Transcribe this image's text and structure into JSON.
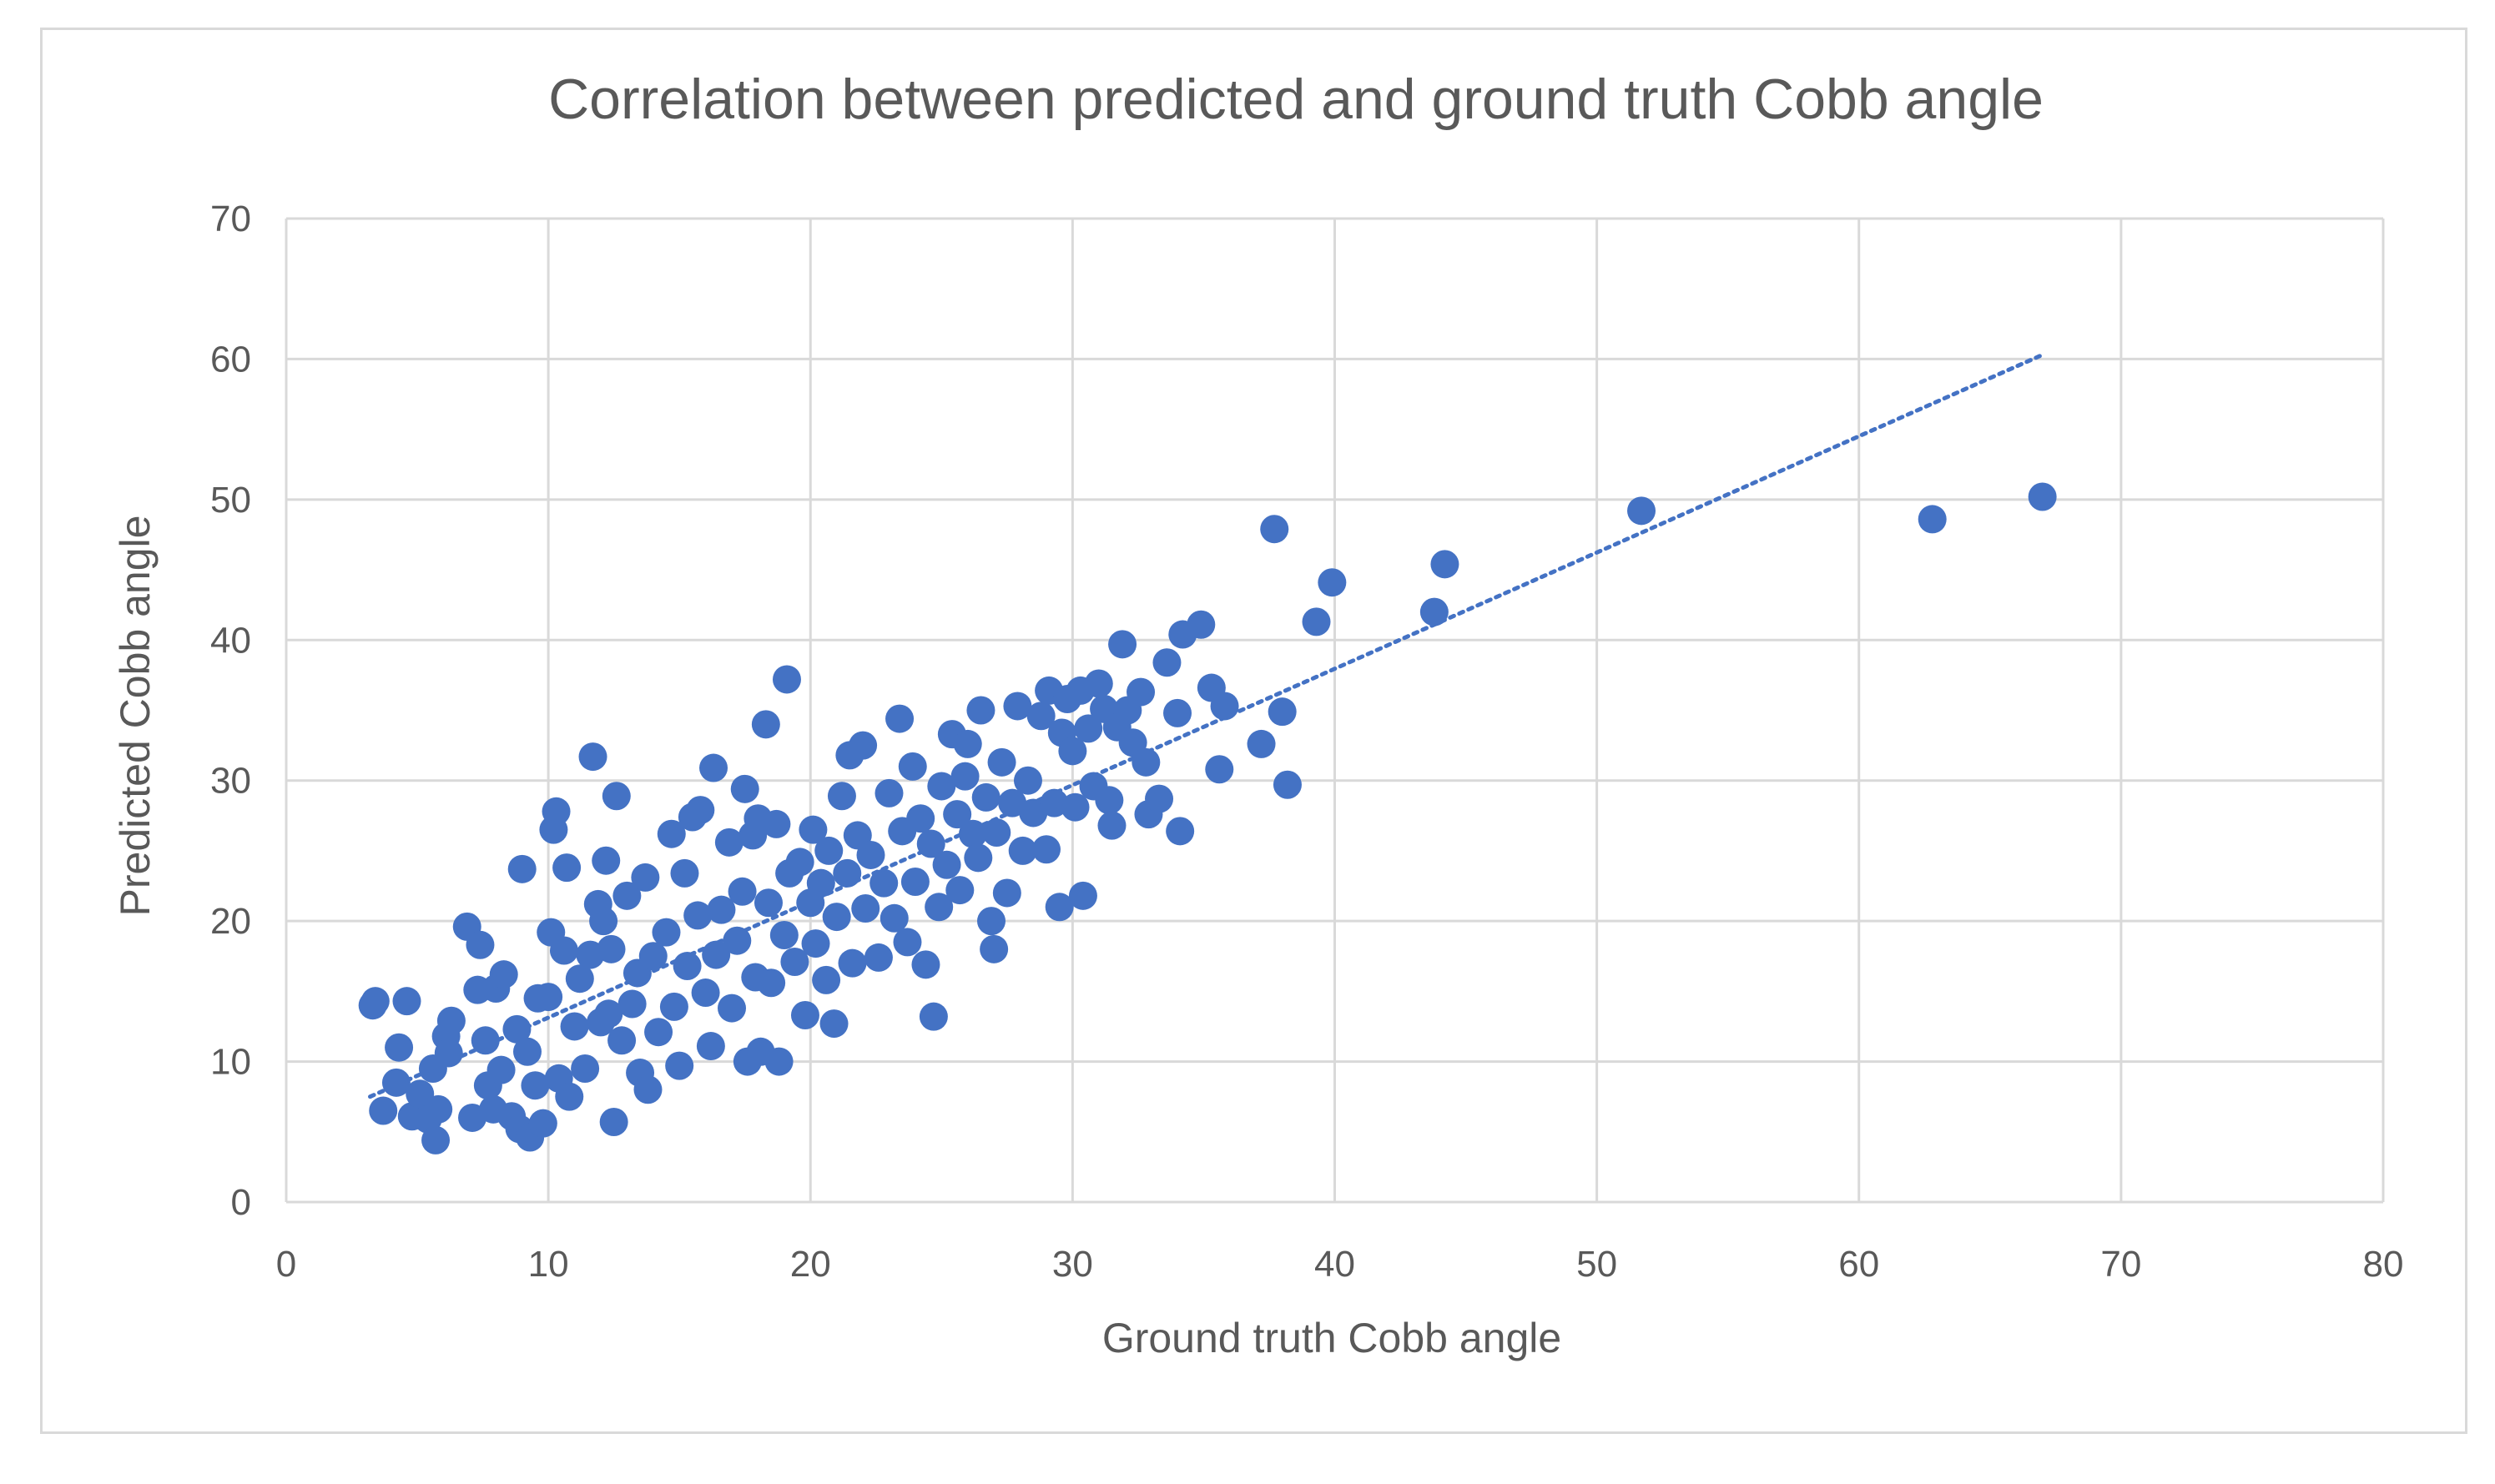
{
  "chart_data": {
    "type": "scatter",
    "title": "Correlation between predicted and ground truth Cobb angle",
    "xlabel": "Ground truth Cobb angle",
    "ylabel": "Predicted Cobb angle",
    "xlim": [
      0,
      80
    ],
    "ylim": [
      0,
      70
    ],
    "xticks": [
      "0",
      "10",
      "20",
      "30",
      "40",
      "50",
      "60",
      "70",
      "80"
    ],
    "yticks": [
      "0",
      "10",
      "20",
      "30",
      "40",
      "50",
      "60",
      "70"
    ],
    "grid": true,
    "legend": "none",
    "marker_color": "#4472c4",
    "trendline": {
      "style": "dotted",
      "x": [
        3.2,
        67
      ],
      "y": [
        7.5,
        60.3
      ]
    },
    "points": [
      [
        3.3,
        14.0
      ],
      [
        3.4,
        14.3
      ],
      [
        3.7,
        6.5
      ],
      [
        4.2,
        8.5
      ],
      [
        4.3,
        11.0
      ],
      [
        4.6,
        14.3
      ],
      [
        4.8,
        6.1
      ],
      [
        5.1,
        7.7
      ],
      [
        5.4,
        5.9
      ],
      [
        5.6,
        9.5
      ],
      [
        5.7,
        4.4
      ],
      [
        5.8,
        6.6
      ],
      [
        6.1,
        11.8
      ],
      [
        6.2,
        10.6
      ],
      [
        6.3,
        12.9
      ],
      [
        6.9,
        19.6
      ],
      [
        7.1,
        6.0
      ],
      [
        7.3,
        15.1
      ],
      [
        7.4,
        18.3
      ],
      [
        7.6,
        11.5
      ],
      [
        7.7,
        8.3
      ],
      [
        7.9,
        6.6
      ],
      [
        8.0,
        15.2
      ],
      [
        8.2,
        9.4
      ],
      [
        8.3,
        16.2
      ],
      [
        8.6,
        6.1
      ],
      [
        8.8,
        12.3
      ],
      [
        8.9,
        5.2
      ],
      [
        9.0,
        23.7
      ],
      [
        9.2,
        10.7
      ],
      [
        9.3,
        4.6
      ],
      [
        9.5,
        8.3
      ],
      [
        9.6,
        14.5
      ],
      [
        9.8,
        5.6
      ],
      [
        10.0,
        14.6
      ],
      [
        10.1,
        19.2
      ],
      [
        10.2,
        26.5
      ],
      [
        10.3,
        27.8
      ],
      [
        10.4,
        8.8
      ],
      [
        10.6,
        17.9
      ],
      [
        10.7,
        23.8
      ],
      [
        10.8,
        7.5
      ],
      [
        11.0,
        12.5
      ],
      [
        11.2,
        15.9
      ],
      [
        11.4,
        9.5
      ],
      [
        11.6,
        17.6
      ],
      [
        11.7,
        31.7
      ],
      [
        11.9,
        21.2
      ],
      [
        12.0,
        12.8
      ],
      [
        12.1,
        20.0
      ],
      [
        12.2,
        24.3
      ],
      [
        12.3,
        13.4
      ],
      [
        12.4,
        18.0
      ],
      [
        12.5,
        5.7
      ],
      [
        12.6,
        28.9
      ],
      [
        12.8,
        11.5
      ],
      [
        13.0,
        21.8
      ],
      [
        13.2,
        14.1
      ],
      [
        13.4,
        16.3
      ],
      [
        13.5,
        9.2
      ],
      [
        13.7,
        23.1
      ],
      [
        13.8,
        8.0
      ],
      [
        14.0,
        17.5
      ],
      [
        14.2,
        12.1
      ],
      [
        14.5,
        19.2
      ],
      [
        14.7,
        26.2
      ],
      [
        14.8,
        13.9
      ],
      [
        15.0,
        9.7
      ],
      [
        15.2,
        23.4
      ],
      [
        15.3,
        16.8
      ],
      [
        15.5,
        27.4
      ],
      [
        15.7,
        20.4
      ],
      [
        15.8,
        27.9
      ],
      [
        16.0,
        14.9
      ],
      [
        16.2,
        11.1
      ],
      [
        16.3,
        30.9
      ],
      [
        16.4,
        17.6
      ],
      [
        16.6,
        20.8
      ],
      [
        16.9,
        25.6
      ],
      [
        17.0,
        13.8
      ],
      [
        17.2,
        18.6
      ],
      [
        17.4,
        22.1
      ],
      [
        17.5,
        29.4
      ],
      [
        17.6,
        10.0
      ],
      [
        17.8,
        26.1
      ],
      [
        17.9,
        16.0
      ],
      [
        18.0,
        27.3
      ],
      [
        18.1,
        10.7
      ],
      [
        18.3,
        34.0
      ],
      [
        18.4,
        21.3
      ],
      [
        18.5,
        15.6
      ],
      [
        18.7,
        26.9
      ],
      [
        18.8,
        10.0
      ],
      [
        19.0,
        19.0
      ],
      [
        19.1,
        37.2
      ],
      [
        19.2,
        23.4
      ],
      [
        19.4,
        17.1
      ],
      [
        19.6,
        24.2
      ],
      [
        19.8,
        13.3
      ],
      [
        20.0,
        21.3
      ],
      [
        20.1,
        26.5
      ],
      [
        20.2,
        18.4
      ],
      [
        20.4,
        22.7
      ],
      [
        20.6,
        15.8
      ],
      [
        20.7,
        25.0
      ],
      [
        20.9,
        12.7
      ],
      [
        21.0,
        20.3
      ],
      [
        21.2,
        28.9
      ],
      [
        21.4,
        23.4
      ],
      [
        21.5,
        31.8
      ],
      [
        21.6,
        17.0
      ],
      [
        21.8,
        26.1
      ],
      [
        22.0,
        32.5
      ],
      [
        22.1,
        20.9
      ],
      [
        22.3,
        24.7
      ],
      [
        22.6,
        17.4
      ],
      [
        22.8,
        22.7
      ],
      [
        23.0,
        29.1
      ],
      [
        23.2,
        20.2
      ],
      [
        23.4,
        34.4
      ],
      [
        23.5,
        26.4
      ],
      [
        23.7,
        18.5
      ],
      [
        23.9,
        31.0
      ],
      [
        24.0,
        22.8
      ],
      [
        24.2,
        27.3
      ],
      [
        24.4,
        16.9
      ],
      [
        24.6,
        25.5
      ],
      [
        24.7,
        13.2
      ],
      [
        24.9,
        21.0
      ],
      [
        25.0,
        29.6
      ],
      [
        25.2,
        24.0
      ],
      [
        25.4,
        33.3
      ],
      [
        25.6,
        27.6
      ],
      [
        25.7,
        22.2
      ],
      [
        25.9,
        30.3
      ],
      [
        26.0,
        32.6
      ],
      [
        26.2,
        26.2
      ],
      [
        26.4,
        24.5
      ],
      [
        26.5,
        35.0
      ],
      [
        26.7,
        28.8
      ],
      [
        26.9,
        20.0
      ],
      [
        27.0,
        18.0
      ],
      [
        27.1,
        26.3
      ],
      [
        27.3,
        31.3
      ],
      [
        27.5,
        22.0
      ],
      [
        27.7,
        28.4
      ],
      [
        27.9,
        35.3
      ],
      [
        28.1,
        25.0
      ],
      [
        28.3,
        30.0
      ],
      [
        28.5,
        27.7
      ],
      [
        28.8,
        34.6
      ],
      [
        29.0,
        25.1
      ],
      [
        29.1,
        36.4
      ],
      [
        29.3,
        28.4
      ],
      [
        29.5,
        21.0
      ],
      [
        29.6,
        33.4
      ],
      [
        29.8,
        35.8
      ],
      [
        30.0,
        32.1
      ],
      [
        30.1,
        28.1
      ],
      [
        30.3,
        36.4
      ],
      [
        30.4,
        21.8
      ],
      [
        30.6,
        33.7
      ],
      [
        30.8,
        29.6
      ],
      [
        31.0,
        36.9
      ],
      [
        31.2,
        35.1
      ],
      [
        31.4,
        28.6
      ],
      [
        31.5,
        26.8
      ],
      [
        31.7,
        33.8
      ],
      [
        31.9,
        39.7
      ],
      [
        32.1,
        35.0
      ],
      [
        32.3,
        32.7
      ],
      [
        32.6,
        36.3
      ],
      [
        32.8,
        31.3
      ],
      [
        32.9,
        27.6
      ],
      [
        33.3,
        28.7
      ],
      [
        33.6,
        38.4
      ],
      [
        34.0,
        34.8
      ],
      [
        34.1,
        26.4
      ],
      [
        34.2,
        40.4
      ],
      [
        34.9,
        41.1
      ],
      [
        35.3,
        36.6
      ],
      [
        35.6,
        30.8
      ],
      [
        35.8,
        35.3
      ],
      [
        37.2,
        32.6
      ],
      [
        37.7,
        47.9
      ],
      [
        38.0,
        34.9
      ],
      [
        38.2,
        29.7
      ],
      [
        39.3,
        41.3
      ],
      [
        39.9,
        44.1
      ],
      [
        43.8,
        42.0
      ],
      [
        44.2,
        45.4
      ],
      [
        51.7,
        49.2
      ],
      [
        62.8,
        48.6
      ],
      [
        67.0,
        50.2
      ]
    ]
  }
}
